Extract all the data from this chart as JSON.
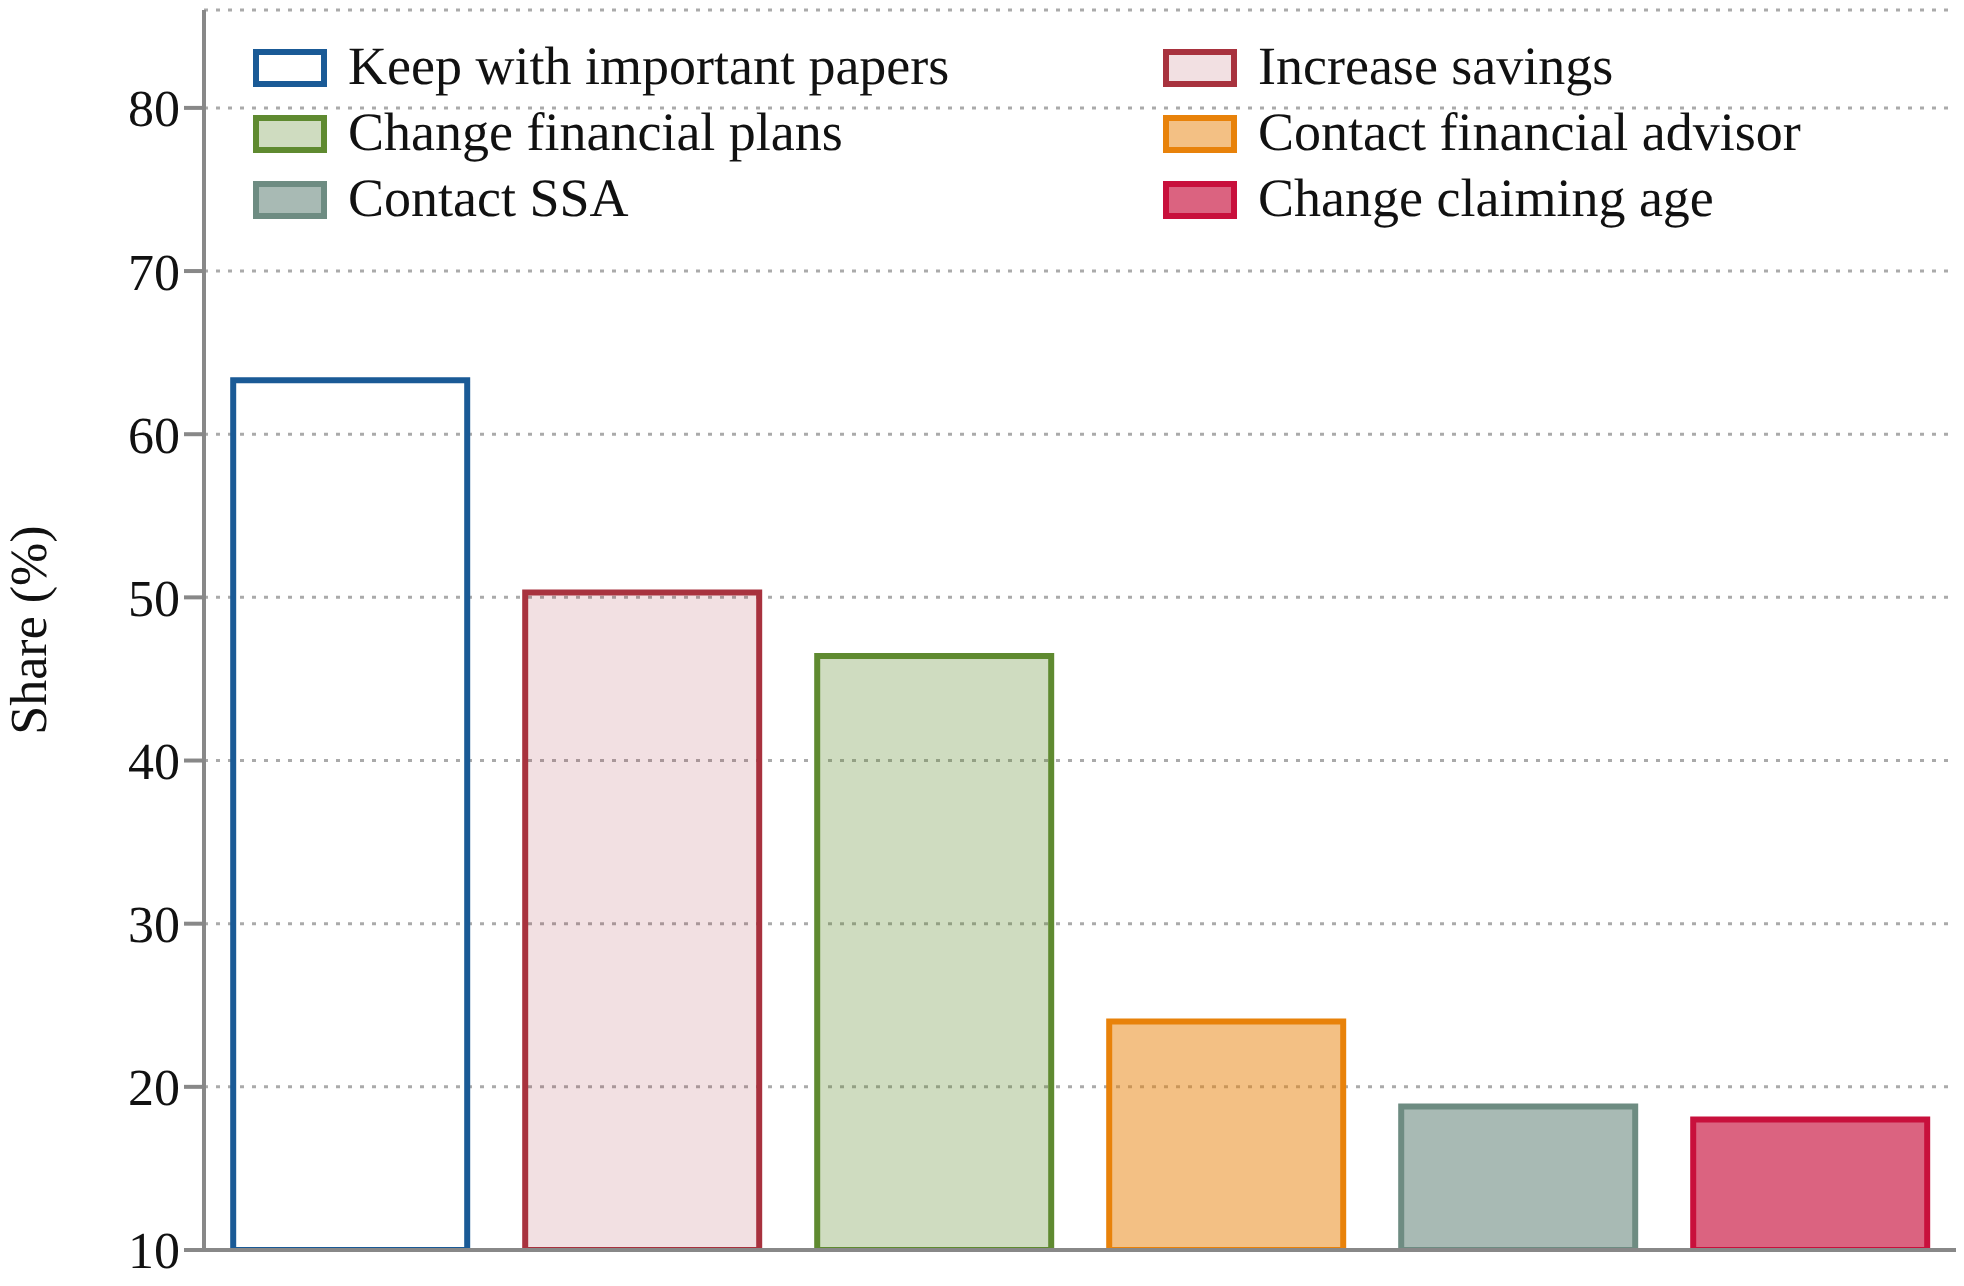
{
  "chart_data": {
    "type": "bar",
    "ylabel": "Share (%)",
    "categories": [
      null,
      null,
      null,
      null,
      null,
      null
    ],
    "series": [
      {
        "name": "Keep with important papers",
        "color": "#1a5a96",
        "values": [
          63.3,
          null,
          null,
          null,
          null,
          null
        ]
      },
      {
        "name": "Increase savings",
        "color": "#a8323e",
        "values": [
          null,
          50.3,
          null,
          null,
          null,
          null
        ]
      },
      {
        "name": "Change financial plans",
        "color": "#5f8a30",
        "values": [
          null,
          null,
          46.4,
          null,
          null,
          null
        ]
      },
      {
        "name": "Contact financial advisor",
        "color": "#e8820a",
        "values": [
          null,
          null,
          null,
          24.0,
          null,
          null
        ]
      },
      {
        "name": "Contact SSA",
        "color": "#6e8c82",
        "values": [
          null,
          null,
          null,
          null,
          18.8,
          null
        ]
      },
      {
        "name": "Change claiming age",
        "color": "#c8103c",
        "values": [
          null,
          null,
          null,
          null,
          null,
          18.0
        ]
      }
    ],
    "ylim": [
      10,
      86
    ],
    "yticks": [
      10,
      20,
      30,
      40,
      50,
      60,
      70,
      80
    ],
    "grid": "y",
    "legend": "top"
  }
}
